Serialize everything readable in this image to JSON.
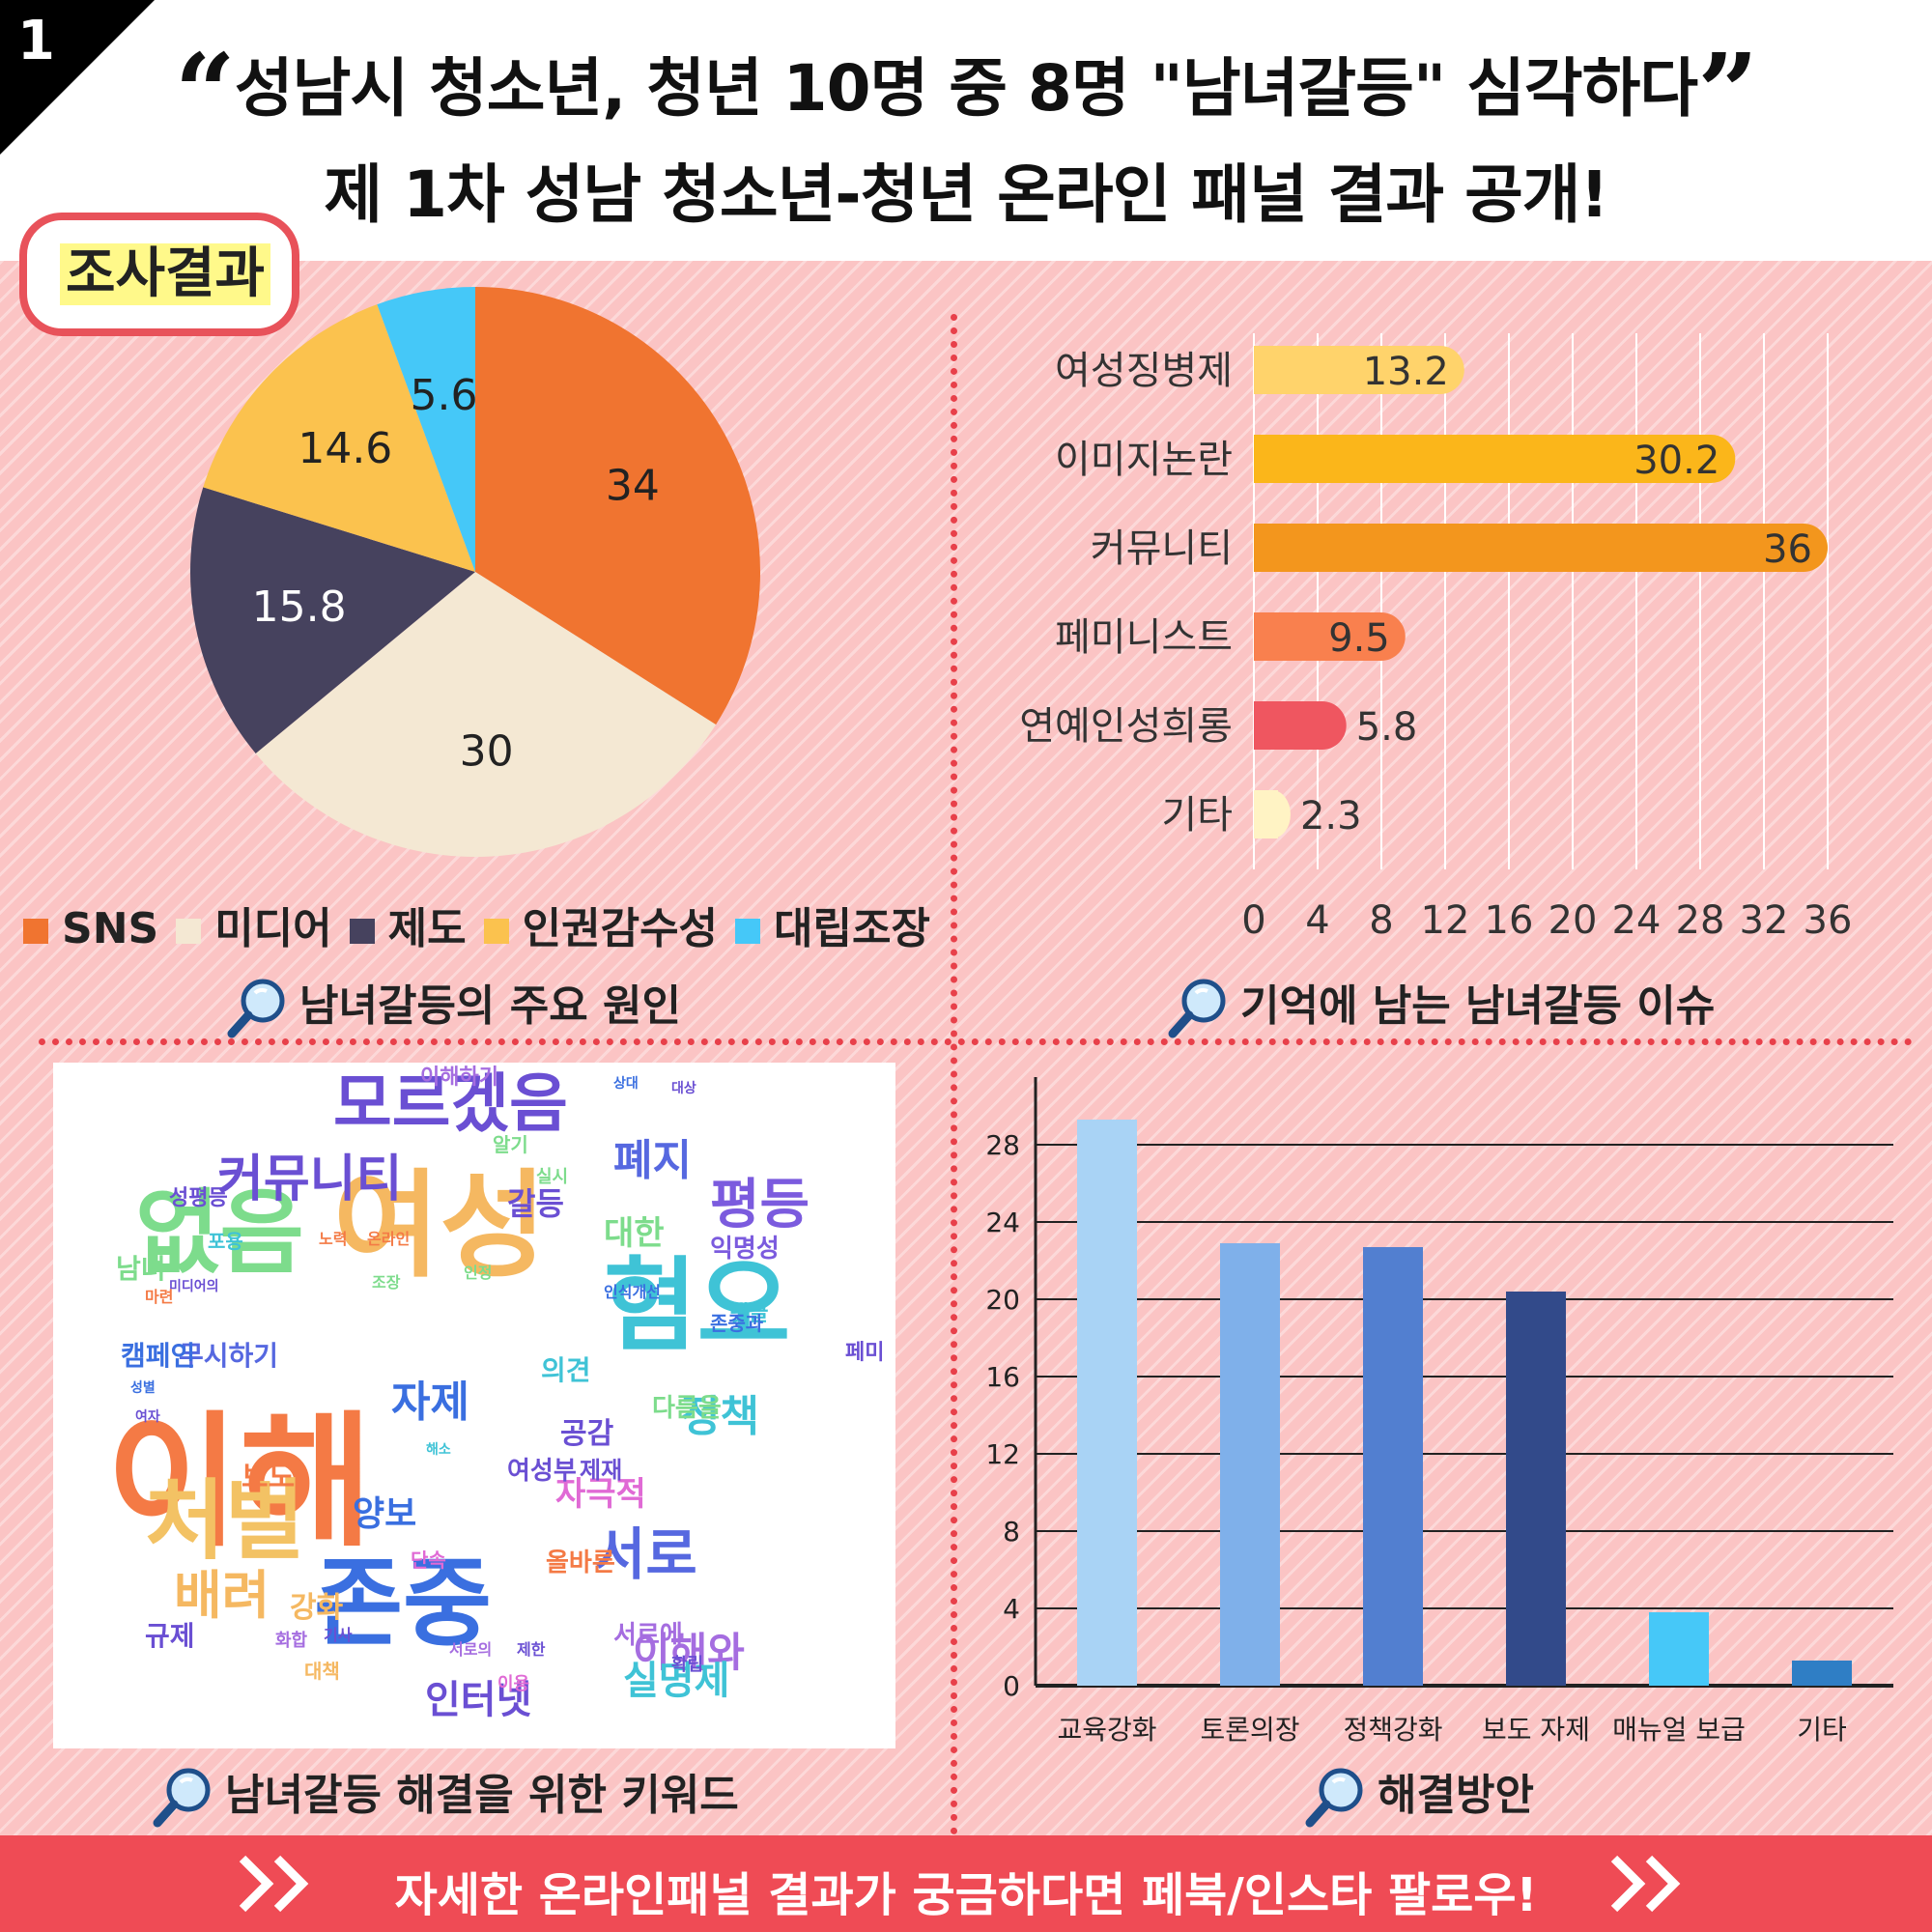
{
  "header": {
    "number": "1",
    "title_line1": "성남시 청소년, 청년 10명 중 8명 \"남녀갈등\" 심각하다",
    "title_line2": "제 1차 성남 청소년-청년 온라인 패널 결과 공개!",
    "open_quote": "“",
    "close_quote": "”"
  },
  "badge": "조사결과",
  "sections": {
    "pie_caption": "남녀갈등의 주요 원인",
    "hbar_caption": "기억에 남는 남녀갈등 이슈",
    "cloud_caption": "남녀갈등 해결을 위한 키워드",
    "vbar_caption": "해결방안"
  },
  "chart_data": [
    {
      "type": "pie",
      "title": "",
      "categories": [
        "SNS",
        "미디어",
        "제도",
        "인권감수성",
        "대립조장"
      ],
      "values": [
        34,
        30,
        15.8,
        14.6,
        5.6
      ],
      "value_labels": [
        "34",
        "30",
        "15.8",
        "14.6",
        "5.6"
      ],
      "colors": [
        "#f07430",
        "#f4e8d3",
        "#46425e",
        "#fbc24e",
        "#45c8f8"
      ],
      "legend": "bottom"
    },
    {
      "type": "bar",
      "orientation": "horizontal",
      "title": "",
      "categories": [
        "여성징병제",
        "이미지논란",
        "커뮤니티",
        "페미니스트",
        "연예인성희롱",
        "기타"
      ],
      "values": [
        13.2,
        30.2,
        36,
        9.5,
        5.8,
        2.3
      ],
      "value_labels": [
        "13.2",
        "30.2",
        "36",
        "9.5",
        "5.8",
        "2.3"
      ],
      "colors": [
        "#ffd36b",
        "#fbb61a",
        "#f3961d",
        "#f9804e",
        "#ef5660",
        "#fff3c4"
      ],
      "xlim": [
        0,
        36
      ],
      "xticks": [
        "0",
        "4",
        "8",
        "12",
        "16",
        "20",
        "24",
        "28",
        "32",
        "36"
      ],
      "grid": true
    },
    {
      "type": "bar",
      "title": "",
      "categories": [
        "교육강화",
        "토론의장",
        "정책강화",
        "보도 자제",
        "매뉴얼 보급",
        "기타"
      ],
      "values": [
        29.3,
        22.9,
        22.7,
        20.4,
        3.8,
        1.3
      ],
      "colors": [
        "#a9d3f5",
        "#7fb0ea",
        "#527fd0",
        "#324a8a",
        "#46c8f8",
        "#2f7ec5"
      ],
      "ylim": [
        0,
        30
      ],
      "yticks": [
        "0",
        "4",
        "8",
        "12",
        "16",
        "20",
        "24",
        "28"
      ],
      "grid": true
    }
  ],
  "wordcloud": {
    "words": [
      {
        "text": "이해",
        "color": "#f47a45",
        "size": 150
      },
      {
        "text": "여성",
        "color": "#f5b861",
        "size": 120
      },
      {
        "text": "혐오",
        "color": "#3fc3d6",
        "size": 105
      },
      {
        "text": "존중",
        "color": "#3a6fe0",
        "size": 100
      },
      {
        "text": "없음",
        "color": "#7ddc8c",
        "size": 95
      },
      {
        "text": "처벌",
        "color": "#f3c264",
        "size": 90
      },
      {
        "text": "모르겠음",
        "color": "#6a4fd3",
        "size": 66
      },
      {
        "text": "커뮤니티",
        "color": "#6a4fd3",
        "size": 52
      },
      {
        "text": "평등",
        "color": "#7b5bde",
        "size": 56
      },
      {
        "text": "서로",
        "color": "#5668e0",
        "size": 58
      },
      {
        "text": "배려",
        "color": "#f5b861",
        "size": 54
      },
      {
        "text": "폐지",
        "color": "#5668e0",
        "size": 44
      },
      {
        "text": "자제",
        "color": "#3a6fe0",
        "size": 44
      },
      {
        "text": "정책",
        "color": "#3fc3d6",
        "size": 44
      },
      {
        "text": "이해와",
        "color": "#a56de0",
        "size": 42
      },
      {
        "text": "실명제",
        "color": "#3fc3d6",
        "size": 40
      },
      {
        "text": "인터넷",
        "color": "#6a4fd3",
        "size": 40
      },
      {
        "text": "양보",
        "color": "#3a6fe0",
        "size": 36
      },
      {
        "text": "자극적",
        "color": "#e06ad5",
        "size": 34
      },
      {
        "text": "대한",
        "color": "#7ddc8c",
        "size": 34
      },
      {
        "text": "갈등",
        "color": "#6a4fd3",
        "size": 32
      },
      {
        "text": "공감",
        "color": "#6a4fd3",
        "size": 30
      },
      {
        "text": "보도",
        "color": "#f47a45",
        "size": 30
      },
      {
        "text": "강화",
        "color": "#f5b861",
        "size": 30
      },
      {
        "text": "규제",
        "color": "#6a4fd3",
        "size": 28
      },
      {
        "text": "의견",
        "color": "#3fc3d6",
        "size": 28
      },
      {
        "text": "무시하기",
        "color": "#5668e0",
        "size": 28
      },
      {
        "text": "캠페인",
        "color": "#3a6fe0",
        "size": 28
      },
      {
        "text": "남녀",
        "color": "#7ddc8c",
        "size": 28
      },
      {
        "text": "여성부",
        "color": "#6a4fd3",
        "size": 26
      },
      {
        "text": "올바른",
        "color": "#f47a45",
        "size": 26
      },
      {
        "text": "서로에",
        "color": "#a56de0",
        "size": 26
      },
      {
        "text": "익명성",
        "color": "#7b5bde",
        "size": 26
      },
      {
        "text": "다름을",
        "color": "#7ddc8c",
        "size": 26
      },
      {
        "text": "제재",
        "color": "#6a4fd3",
        "size": 24
      },
      {
        "text": "이해하기",
        "color": "#a56de0",
        "size": 22
      },
      {
        "text": "성평등",
        "color": "#6a4fd3",
        "size": 22
      },
      {
        "text": "댓글",
        "color": "#3fc3d6",
        "size": 22
      },
      {
        "text": "존중과",
        "color": "#3a6fe0",
        "size": 20
      },
      {
        "text": "페미",
        "color": "#6a4fd3",
        "size": 22
      },
      {
        "text": "단속",
        "color": "#e06ad5",
        "size": 20
      },
      {
        "text": "대책",
        "color": "#f5b861",
        "size": 20
      },
      {
        "text": "확립",
        "color": "#6a4fd3",
        "size": 18
      },
      {
        "text": "이용",
        "color": "#e06ad5",
        "size": 18
      },
      {
        "text": "실시",
        "color": "#7ddc8c",
        "size": 18
      },
      {
        "text": "마련",
        "color": "#f47a45",
        "size": 16
      },
      {
        "text": "조장",
        "color": "#7ddc8c",
        "size": 16
      },
      {
        "text": "인식개선",
        "color": "#3a6fe0",
        "size": 16
      },
      {
        "text": "포용",
        "color": "#3fc3d6",
        "size": 20
      },
      {
        "text": "노력",
        "color": "#f47a45",
        "size": 16
      },
      {
        "text": "온라인",
        "color": "#f47a45",
        "size": 16
      },
      {
        "text": "화합",
        "color": "#a56de0",
        "size": 18
      },
      {
        "text": "기사",
        "color": "#6a4fd3",
        "size": 16
      },
      {
        "text": "제한",
        "color": "#6a4fd3",
        "size": 16
      },
      {
        "text": "상대",
        "color": "#3a6fe0",
        "size": 14
      },
      {
        "text": "서로의",
        "color": "#a56de0",
        "size": 16
      },
      {
        "text": "알기",
        "color": "#7ddc8c",
        "size": 20
      },
      {
        "text": "미디어의",
        "color": "#6a4fd3",
        "size": 14
      },
      {
        "text": "성별",
        "color": "#3a6fe0",
        "size": 14
      },
      {
        "text": "여자",
        "color": "#6a4fd3",
        "size": 14
      },
      {
        "text": "인정",
        "color": "#7ddc8c",
        "size": 16
      },
      {
        "text": "대상",
        "color": "#6a4fd3",
        "size": 14
      },
      {
        "text": "해소",
        "color": "#3fc3d6",
        "size": 14
      }
    ]
  },
  "footer": "자세한 온라인패널 결과가 궁금하다면 페북/인스타 팔로우!"
}
